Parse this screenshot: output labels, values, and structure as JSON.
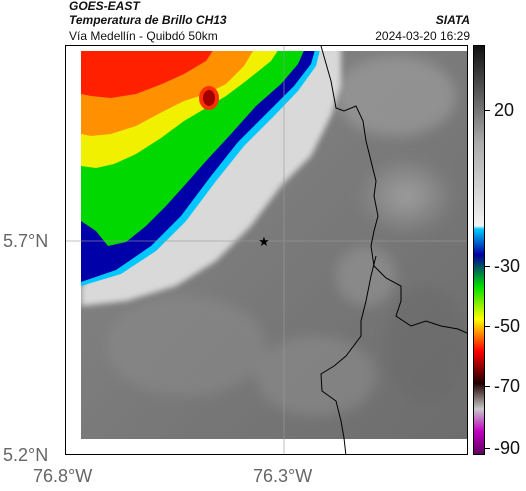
{
  "header": {
    "satellite": "GOES-EAST",
    "product": "Temperatura de Brillo CH13",
    "subtitle": "Vía Medellín - Quibdó 50km",
    "organization": "SIATA",
    "datetime": "2024-03-20 16:29"
  },
  "axes": {
    "lat_labels": [
      "5.7°N",
      "5.2°N"
    ],
    "lon_labels": [
      "76.8°W",
      "76.3°W"
    ]
  },
  "colorbar": {
    "ticks": [
      "20",
      "-30",
      "-50",
      "-70",
      "-90"
    ],
    "stops": [
      {
        "value": 35,
        "color": "#111111"
      },
      {
        "value": 20,
        "color": "#5a5a5a"
      },
      {
        "value": 5,
        "color": "#aaaaaa"
      },
      {
        "value": -21,
        "color": "#f4f4f4"
      },
      {
        "value": -22,
        "color": "#00c8ff"
      },
      {
        "value": -30,
        "color": "#0000a0"
      },
      {
        "value": -40,
        "color": "#00e000"
      },
      {
        "value": -50,
        "color": "#ffff00"
      },
      {
        "value": -60,
        "color": "#ff0000"
      },
      {
        "value": -70,
        "color": "#200000"
      },
      {
        "value": -78,
        "color": "#c8c8c8"
      },
      {
        "value": -85,
        "color": "#c000c0"
      },
      {
        "value": -92,
        "color": "#600060"
      }
    ]
  },
  "map": {
    "marker": "star-icon",
    "land_gray": "#7d7d7d",
    "clear_gray": "#d9d9d9"
  }
}
